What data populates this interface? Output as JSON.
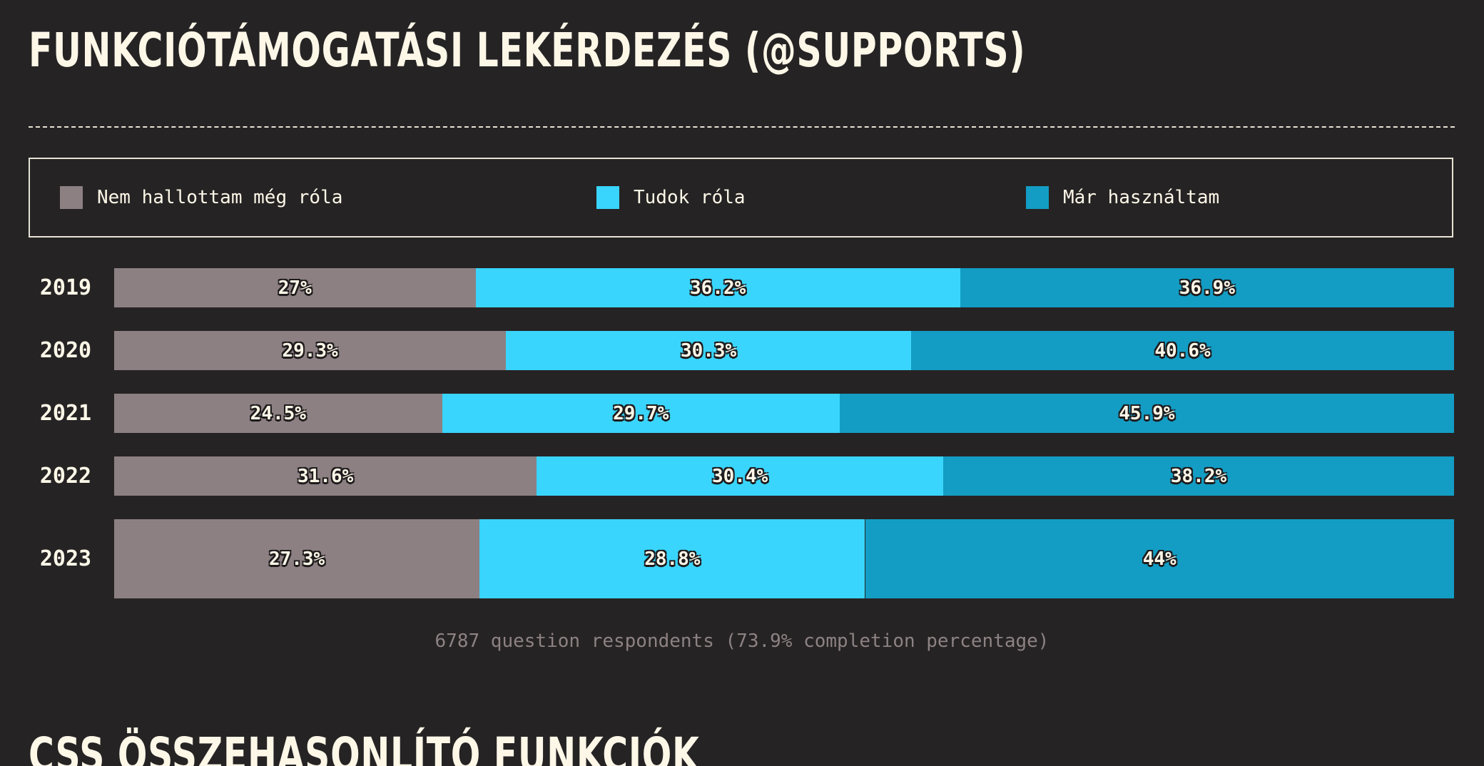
{
  "page": {
    "title": "Funkciótámogatási lekérdezés (@supports)",
    "next_section_title": "CSS összehasonlító funkciók",
    "footnote": "6787 question respondents (73.9% completion percentage)"
  },
  "colors": {
    "background": "#262324",
    "text": "#fdf7e8",
    "never_heard": "#8c8083",
    "heard": "#39d5fd",
    "used": "#139dc4",
    "footnote": "#8d8283"
  },
  "legend": [
    {
      "label": "Nem hallottam még róla",
      "color": "#8c8083"
    },
    {
      "label": "Tudok róla",
      "color": "#39d5fd"
    },
    {
      "label": "Már használtam",
      "color": "#139dc4"
    }
  ],
  "chart_data": {
    "type": "bar",
    "orientation": "horizontal",
    "stacked": true,
    "unit": "%",
    "categories": [
      "2019",
      "2020",
      "2021",
      "2022",
      "2023"
    ],
    "series": [
      {
        "name": "Nem hallottam még róla",
        "color": "#8c8083",
        "values": [
          27,
          29.3,
          24.5,
          31.6,
          27.3
        ],
        "labels": [
          "27%",
          "29.3%",
          "24.5%",
          "31.6%",
          "27.3%"
        ]
      },
      {
        "name": "Tudok róla",
        "color": "#39d5fd",
        "values": [
          36.2,
          30.3,
          29.7,
          30.4,
          28.8
        ],
        "labels": [
          "36.2%",
          "30.3%",
          "29.7%",
          "30.4%",
          "28.8%"
        ]
      },
      {
        "name": "Már használtam",
        "color": "#139dc4",
        "values": [
          36.9,
          40.6,
          45.9,
          38.2,
          44
        ],
        "labels": [
          "36.9%",
          "40.6%",
          "45.9%",
          "38.2%",
          "44%"
        ]
      }
    ],
    "legend_position": "top",
    "grid": false
  }
}
